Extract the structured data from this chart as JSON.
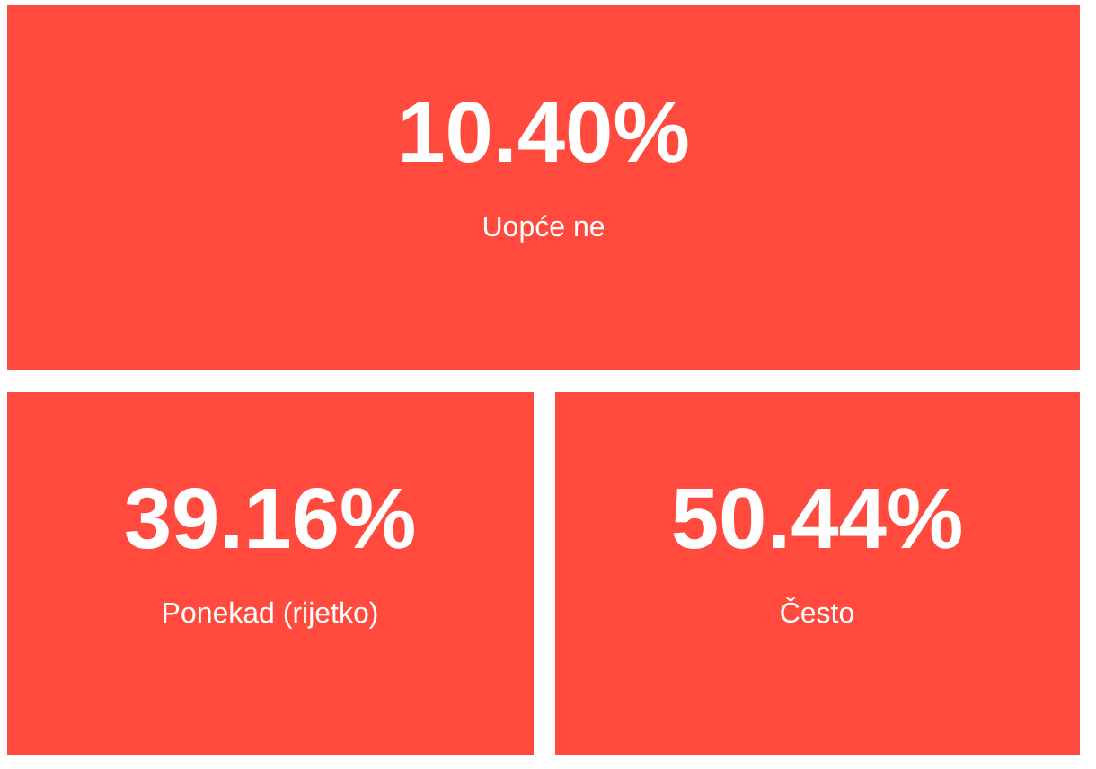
{
  "chart_data": {
    "type": "other",
    "categories": [
      "Uopće ne",
      "Ponekad (rijetko)",
      "Često"
    ],
    "values": [
      10.4,
      39.16,
      50.44
    ],
    "value_labels": [
      "10.40%",
      "39.16%",
      "50.44%"
    ],
    "color": "#ff4a3d"
  }
}
